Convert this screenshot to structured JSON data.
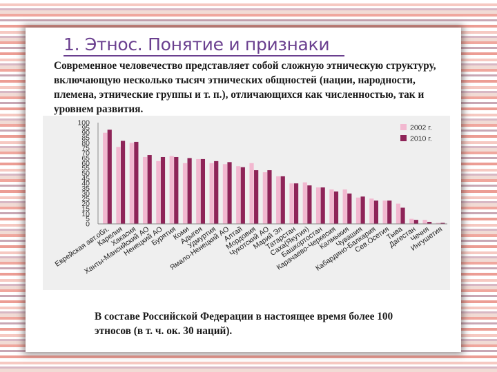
{
  "slide": {
    "title": "1. Этнос. Понятие и признаки",
    "intro": "Современное человечество представляет собой сложную этническую структуру, включающую несколько тысяч этнических общностей (нации, народности, племена, этнические группы и т. п.), отличающихся как численностью, так и уровнем развития.",
    "summary": "В составе Российской Федерации в настоящее время более 100 этносов (в т. ч. ок. 30 наций)."
  },
  "chart_data": {
    "type": "bar",
    "ylim": [
      0,
      100
    ],
    "yticks": [
      0,
      5,
      10,
      15,
      20,
      25,
      30,
      35,
      40,
      45,
      50,
      55,
      60,
      65,
      70,
      75,
      80,
      85,
      90,
      95,
      100
    ],
    "grid": false,
    "legend_position": "top-right",
    "categories": [
      "Еврейская авт.обл.",
      "Карелия",
      "Хакасия",
      "Ханты-Мансийский АО",
      "Ненецкий АО",
      "Бурятия",
      "Коми",
      "Адыгея",
      "Удмуртия",
      "Ямало-Ненецкий АО",
      "Алтай",
      "Мордовия",
      "Чукотский АО",
      "Марий Эл",
      "Татарстан",
      "Саха(Якутия)",
      "Башкортостан",
      "Карачаево-Черкесия",
      "Калмыкия",
      "Чувашия",
      "Кабардино-Балкария",
      "Сев.Осетия",
      "Тыва",
      "Дагестан",
      "Чечня",
      "Ингушетия"
    ],
    "series": [
      {
        "name": "2002 г.",
        "color": "#f2b8d0",
        "values": [
          90,
          76,
          80,
          66,
          62,
          67,
          60,
          64,
          60,
          59,
          57,
          60,
          51,
          47,
          40,
          41,
          36,
          34,
          34,
          26,
          25,
          23,
          20,
          5,
          4,
          1
        ]
      },
      {
        "name": "2010 г.",
        "color": "#8e2458",
        "values": [
          93,
          82,
          81,
          68,
          66,
          66,
          65,
          64,
          62,
          61,
          56,
          53,
          53,
          47,
          40,
          38,
          36,
          32,
          30,
          27,
          23,
          23,
          16,
          4,
          2,
          1
        ]
      }
    ]
  }
}
